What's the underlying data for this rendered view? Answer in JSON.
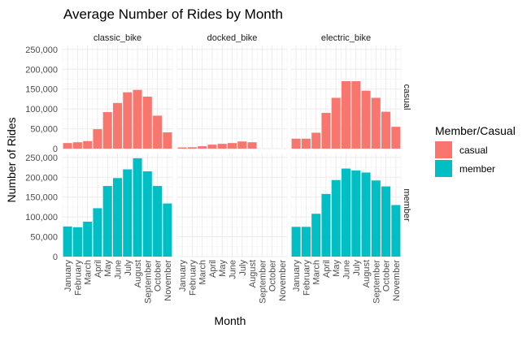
{
  "chart_data": {
    "type": "bar",
    "title": "Average Number of Rides by Month",
    "xlabel": "Month",
    "ylabel": "Number of Rides",
    "ylim": [
      0,
      260000
    ],
    "yticks": [
      0,
      50000,
      100000,
      150000,
      200000,
      250000
    ],
    "ytick_labels": [
      "0",
      "50,000",
      "100,000",
      "150,000",
      "200,000",
      "250,000"
    ],
    "categories": [
      "January",
      "February",
      "March",
      "April",
      "May",
      "June",
      "July",
      "August",
      "September",
      "October",
      "November"
    ],
    "facet_columns": [
      "classic_bike",
      "docked_bike",
      "electric_bike"
    ],
    "facet_rows": [
      "casual",
      "member"
    ],
    "grid": true,
    "legend": {
      "title": "Member/Casual",
      "position": "right",
      "entries": [
        {
          "label": "casual",
          "color": "#F8766D"
        },
        {
          "label": "member",
          "color": "#00BFC4"
        }
      ]
    },
    "panels": [
      {
        "column": "classic_bike",
        "row": "casual",
        "color": "#F8766D",
        "values": [
          14000,
          16000,
          19000,
          49000,
          92000,
          115000,
          142000,
          148000,
          131000,
          83000,
          41000
        ]
      },
      {
        "column": "docked_bike",
        "row": "casual",
        "color": "#F8766D",
        "values": [
          3000,
          3500,
          6000,
          10000,
          12000,
          14000,
          18000,
          16000,
          null,
          null,
          null
        ]
      },
      {
        "column": "electric_bike",
        "row": "casual",
        "color": "#F8766D",
        "values": [
          25000,
          25000,
          40000,
          90000,
          128000,
          170000,
          170000,
          146000,
          128000,
          93000,
          55000
        ]
      },
      {
        "column": "classic_bike",
        "row": "member",
        "color": "#00BFC4",
        "values": [
          76000,
          74000,
          88000,
          122000,
          178000,
          198000,
          220000,
          248000,
          215000,
          178000,
          134000
        ]
      },
      {
        "column": "docked_bike",
        "row": "member",
        "color": "#00BFC4",
        "values": [
          null,
          null,
          null,
          null,
          null,
          null,
          null,
          null,
          null,
          null,
          null
        ]
      },
      {
        "column": "electric_bike",
        "row": "member",
        "color": "#00BFC4",
        "values": [
          75000,
          75000,
          108000,
          158000,
          193000,
          222000,
          217000,
          212000,
          192000,
          177000,
          130000
        ]
      }
    ]
  }
}
